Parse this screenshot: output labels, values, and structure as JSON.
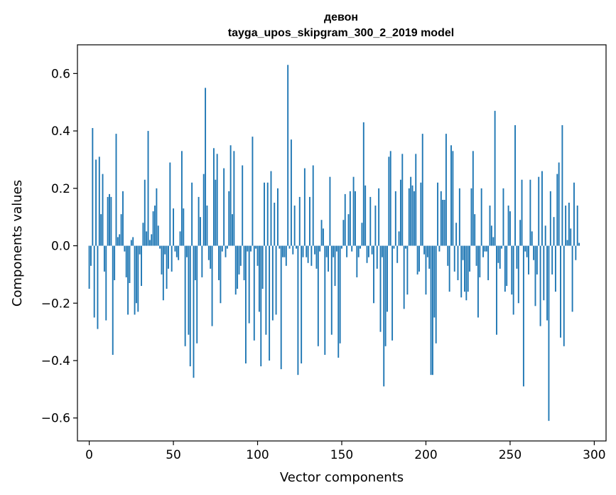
{
  "chart_data": {
    "type": "bar",
    "title_line1": "девон",
    "title_line2": "tayga_upos_skipgram_300_2_2019 model",
    "xlabel": "Vector components",
    "ylabel": "Components values",
    "xlim": [
      -7,
      307
    ],
    "ylim": [
      -0.68,
      0.7
    ],
    "xticks": [
      0,
      50,
      100,
      150,
      200,
      250,
      300
    ],
    "xtick_labels": [
      "0",
      "50",
      "100",
      "150",
      "200",
      "250",
      "300"
    ],
    "yticks": [
      -0.6,
      -0.4,
      -0.2,
      0.0,
      0.2,
      0.4,
      0.6
    ],
    "ytick_labels": [
      "−0.6",
      "−0.4",
      "−0.2",
      "0.0",
      "0.2",
      "0.4",
      "0.6"
    ],
    "bar_color": "#1f77b4",
    "values": [
      -0.15,
      -0.07,
      0.41,
      -0.25,
      0.3,
      -0.29,
      0.31,
      0.11,
      0.25,
      -0.09,
      -0.26,
      0.17,
      0.18,
      0.17,
      -0.38,
      -0.12,
      0.39,
      0.03,
      0.04,
      0.11,
      0.19,
      -0.02,
      -0.11,
      -0.24,
      -0.13,
      0.02,
      0.03,
      -0.24,
      -0.2,
      -0.23,
      -0.03,
      -0.14,
      0.08,
      0.23,
      0.05,
      0.4,
      0.02,
      0.04,
      0.12,
      0.14,
      0.2,
      0.07,
      -0.01,
      -0.1,
      -0.19,
      -0.03,
      -0.15,
      -0.08,
      0.29,
      -0.09,
      0.13,
      -0.02,
      -0.04,
      -0.05,
      0.05,
      0.33,
      0.13,
      -0.35,
      -0.04,
      -0.31,
      -0.42,
      0.22,
      -0.46,
      -0.12,
      -0.34,
      0.17,
      0.1,
      -0.11,
      0.25,
      0.55,
      0.14,
      -0.05,
      -0.08,
      -0.28,
      0.34,
      0.23,
      0.32,
      -0.12,
      -0.2,
      -0.02,
      0.27,
      -0.04,
      -0.01,
      0.19,
      0.35,
      0.11,
      0.33,
      -0.17,
      -0.15,
      -0.1,
      -0.07,
      0.28,
      -0.12,
      -0.41,
      -0.02,
      -0.27,
      -0.02,
      0.38,
      -0.33,
      -0.01,
      -0.07,
      -0.23,
      -0.42,
      -0.15,
      0.22,
      -0.31,
      0.22,
      -0.4,
      0.26,
      -0.26,
      0.15,
      -0.24,
      0.2,
      -0.01,
      -0.43,
      -0.04,
      -0.04,
      -0.07,
      0.63,
      -0.01,
      0.37,
      -0.03,
      0.14,
      -0.01,
      -0.45,
      0.17,
      -0.41,
      -0.04,
      0.27,
      -0.04,
      -0.06,
      0.17,
      -0.07,
      0.28,
      -0.03,
      -0.08,
      -0.35,
      -0.02,
      0.09,
      0.06,
      -0.38,
      -0.04,
      -0.09,
      0.24,
      -0.31,
      -0.04,
      -0.14,
      -0.02,
      -0.39,
      -0.34,
      -0.01,
      0.09,
      0.18,
      -0.04,
      0.11,
      0.19,
      -0.02,
      0.24,
      0.19,
      -0.11,
      -0.04,
      -0.01,
      0.08,
      0.43,
      0.21,
      -0.06,
      -0.04,
      0.17,
      -0.03,
      -0.2,
      0.14,
      -0.08,
      0.2,
      -0.3,
      -0.04,
      -0.49,
      -0.35,
      -0.23,
      0.31,
      0.33,
      -0.33,
      -0.01,
      0.19,
      -0.06,
      0.05,
      0.23,
      0.32,
      -0.22,
      -0.01,
      -0.17,
      0.2,
      0.24,
      0.21,
      0.19,
      0.32,
      -0.1,
      -0.09,
      0.22,
      0.39,
      -0.03,
      -0.17,
      -0.04,
      -0.08,
      -0.45,
      -0.45,
      -0.25,
      -0.34,
      0.22,
      -0.02,
      0.19,
      0.16,
      0.16,
      0.39,
      -0.07,
      -0.16,
      0.35,
      0.33,
      -0.09,
      0.08,
      -0.12,
      0.2,
      -0.18,
      -0.05,
      -0.16,
      -0.19,
      -0.16,
      -0.09,
      0.2,
      0.33,
      0.11,
      -0.07,
      -0.25,
      -0.11,
      0.2,
      -0.04,
      -0.02,
      -0.02,
      -0.12,
      0.14,
      0.07,
      0.03,
      0.47,
      -0.31,
      -0.06,
      -0.08,
      -0.01,
      0.2,
      -0.16,
      -0.14,
      0.14,
      0.12,
      -0.17,
      -0.24,
      0.42,
      -0.08,
      -0.2,
      0.09,
      0.23,
      -0.49,
      -0.02,
      -0.04,
      -0.1,
      0.23,
      0.05,
      -0.05,
      -0.21,
      -0.1,
      0.24,
      -0.28,
      0.26,
      -0.19,
      0.07,
      -0.26,
      -0.61,
      0.19,
      -0.1,
      0.1,
      -0.16,
      0.25,
      0.29,
      -0.32,
      0.42,
      -0.35,
      0.14,
      0.02,
      0.15,
      0.06,
      -0.23,
      0.22,
      -0.05,
      0.14,
      0.01
    ]
  }
}
